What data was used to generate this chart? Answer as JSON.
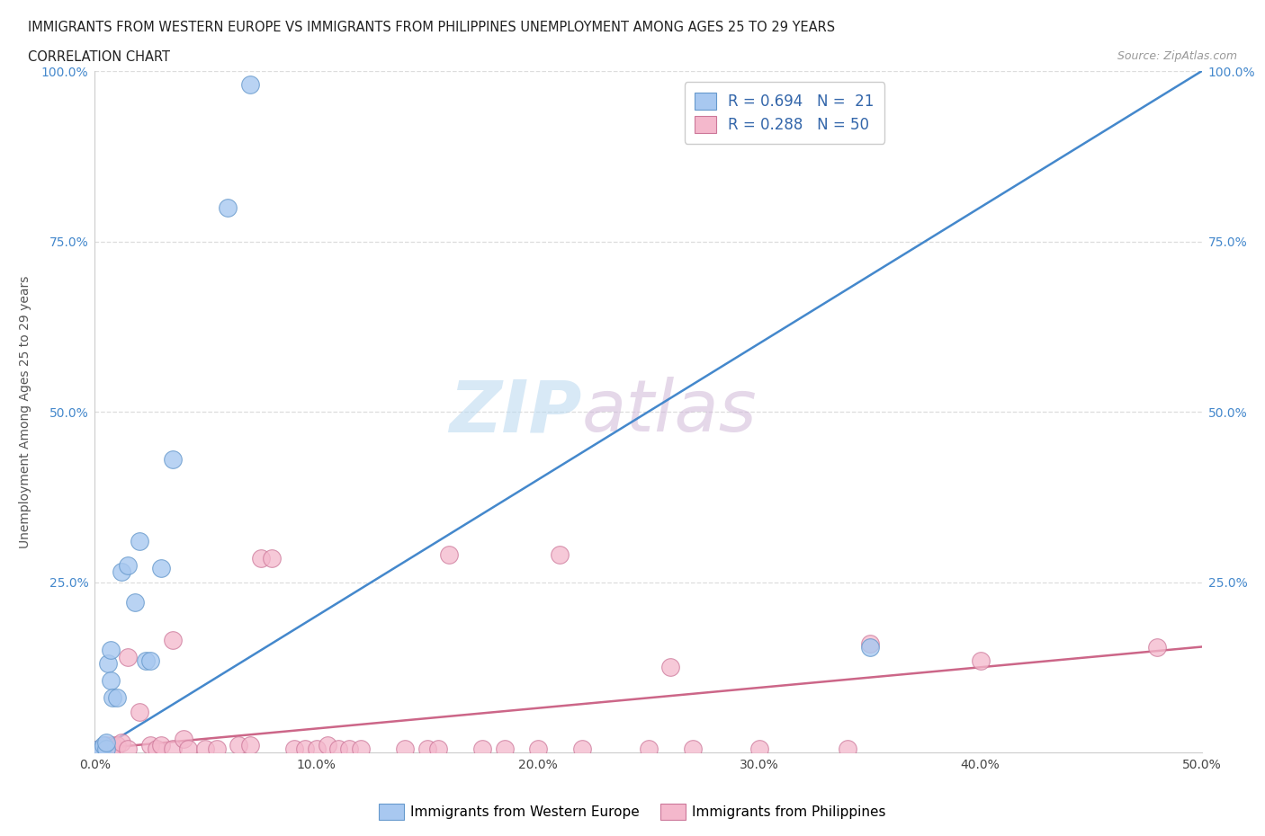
{
  "title_line1": "IMMIGRANTS FROM WESTERN EUROPE VS IMMIGRANTS FROM PHILIPPINES UNEMPLOYMENT AMONG AGES 25 TO 29 YEARS",
  "title_line2": "CORRELATION CHART",
  "source_text": "Source: ZipAtlas.com",
  "ylabel": "Unemployment Among Ages 25 to 29 years",
  "xlim": [
    0.0,
    0.5
  ],
  "ylim": [
    0.0,
    1.0
  ],
  "xtick_labels": [
    "0.0%",
    "10.0%",
    "20.0%",
    "30.0%",
    "40.0%",
    "50.0%"
  ],
  "xtick_vals": [
    0.0,
    0.1,
    0.2,
    0.3,
    0.4,
    0.5
  ],
  "ytick_labels": [
    "25.0%",
    "50.0%",
    "75.0%",
    "100.0%"
  ],
  "ytick_vals": [
    0.25,
    0.5,
    0.75,
    1.0
  ],
  "watermark_zip": "ZIP",
  "watermark_atlas": "atlas",
  "blue_color": "#a8c8f0",
  "blue_edge_color": "#6699cc",
  "pink_color": "#f4b8cc",
  "pink_edge_color": "#cc7799",
  "blue_line_color": "#4488cc",
  "pink_line_color": "#cc6688",
  "legend_R1": "R = 0.694",
  "legend_N1": "N =  21",
  "legend_R2": "R = 0.288",
  "legend_N2": "N = 50",
  "blue_scatter_x": [
    0.002,
    0.003,
    0.004,
    0.005,
    0.005,
    0.006,
    0.007,
    0.007,
    0.008,
    0.01,
    0.012,
    0.015,
    0.018,
    0.02,
    0.023,
    0.025,
    0.03,
    0.035,
    0.06,
    0.07,
    0.35
  ],
  "blue_scatter_y": [
    0.005,
    0.005,
    0.01,
    0.005,
    0.015,
    0.13,
    0.15,
    0.105,
    0.08,
    0.08,
    0.265,
    0.275,
    0.22,
    0.31,
    0.135,
    0.135,
    0.27,
    0.43,
    0.8,
    0.98,
    0.155
  ],
  "pink_scatter_x": [
    0.002,
    0.003,
    0.004,
    0.005,
    0.005,
    0.006,
    0.007,
    0.008,
    0.01,
    0.012,
    0.015,
    0.015,
    0.02,
    0.025,
    0.028,
    0.03,
    0.035,
    0.035,
    0.04,
    0.042,
    0.05,
    0.055,
    0.065,
    0.07,
    0.075,
    0.08,
    0.09,
    0.095,
    0.1,
    0.105,
    0.11,
    0.115,
    0.12,
    0.14,
    0.15,
    0.155,
    0.16,
    0.175,
    0.185,
    0.2,
    0.21,
    0.22,
    0.25,
    0.26,
    0.27,
    0.3,
    0.34,
    0.35,
    0.4,
    0.48
  ],
  "pink_scatter_y": [
    0.005,
    0.005,
    0.005,
    0.005,
    0.01,
    0.005,
    0.005,
    0.01,
    0.01,
    0.015,
    0.005,
    0.14,
    0.06,
    0.01,
    0.005,
    0.01,
    0.005,
    0.165,
    0.02,
    0.005,
    0.005,
    0.005,
    0.01,
    0.01,
    0.285,
    0.285,
    0.005,
    0.005,
    0.005,
    0.01,
    0.005,
    0.005,
    0.005,
    0.005,
    0.005,
    0.005,
    0.29,
    0.005,
    0.005,
    0.005,
    0.29,
    0.005,
    0.005,
    0.125,
    0.005,
    0.005,
    0.005,
    0.16,
    0.135,
    0.155
  ],
  "blue_line_x0": 0.0,
  "blue_line_x1": 0.5,
  "blue_line_y0": 0.0,
  "blue_line_y1": 1.0,
  "pink_line_x0": 0.0,
  "pink_line_x1": 0.5,
  "pink_line_y0": 0.005,
  "pink_line_y1": 0.155
}
